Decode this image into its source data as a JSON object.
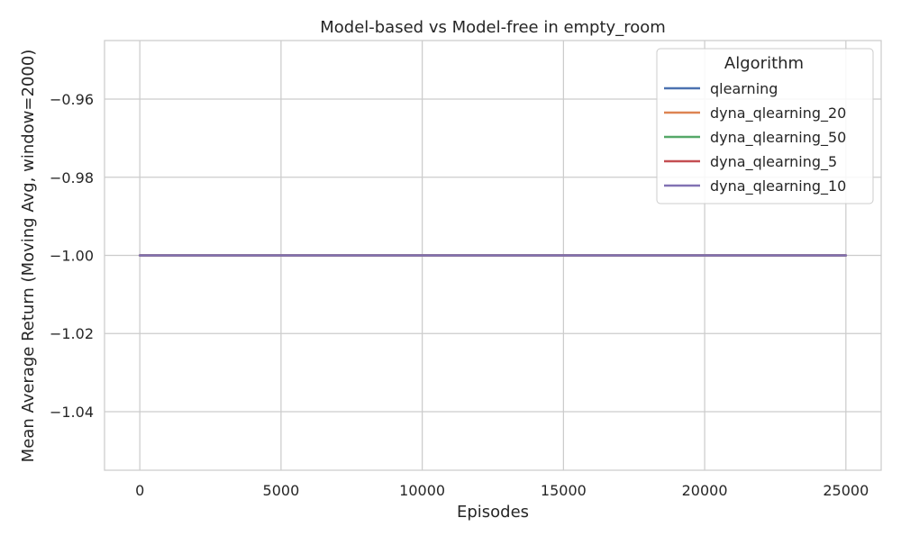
{
  "chart_data": {
    "type": "line",
    "title": "Model-based vs Model-free in empty_room",
    "xlabel": "Episodes",
    "ylabel": "Mean Average Return (Moving Avg, window=2000)",
    "xlim": [
      -1250,
      26250
    ],
    "ylim": [
      -1.055,
      -0.945
    ],
    "xticks": [
      0,
      5000,
      10000,
      15000,
      20000,
      25000
    ],
    "xtick_labels": [
      "0",
      "5000",
      "10000",
      "15000",
      "20000",
      "25000"
    ],
    "yticks": [
      -1.04,
      -1.02,
      -1.0,
      -0.98,
      -0.96
    ],
    "ytick_labels": [
      "−1.04",
      "−1.02",
      "−1.00",
      "−0.98",
      "−0.96"
    ],
    "grid": true,
    "legend": {
      "title": "Algorithm",
      "placement": "upper right"
    },
    "series": [
      {
        "name": "qlearning",
        "color": "#4c72b0",
        "x": [
          0,
          25000
        ],
        "y": [
          -1.0,
          -1.0
        ]
      },
      {
        "name": "dyna_qlearning_20",
        "color": "#dd8452",
        "x": [
          0,
          25000
        ],
        "y": [
          -1.0,
          -1.0
        ]
      },
      {
        "name": "dyna_qlearning_50",
        "color": "#55a868",
        "x": [
          0,
          25000
        ],
        "y": [
          -1.0,
          -1.0
        ]
      },
      {
        "name": "dyna_qlearning_5",
        "color": "#c44e52",
        "x": [
          0,
          25000
        ],
        "y": [
          -1.0,
          -1.0
        ]
      },
      {
        "name": "dyna_qlearning_10",
        "color": "#8172b3",
        "x": [
          0,
          25000
        ],
        "y": [
          -1.0,
          -1.0
        ]
      }
    ]
  }
}
